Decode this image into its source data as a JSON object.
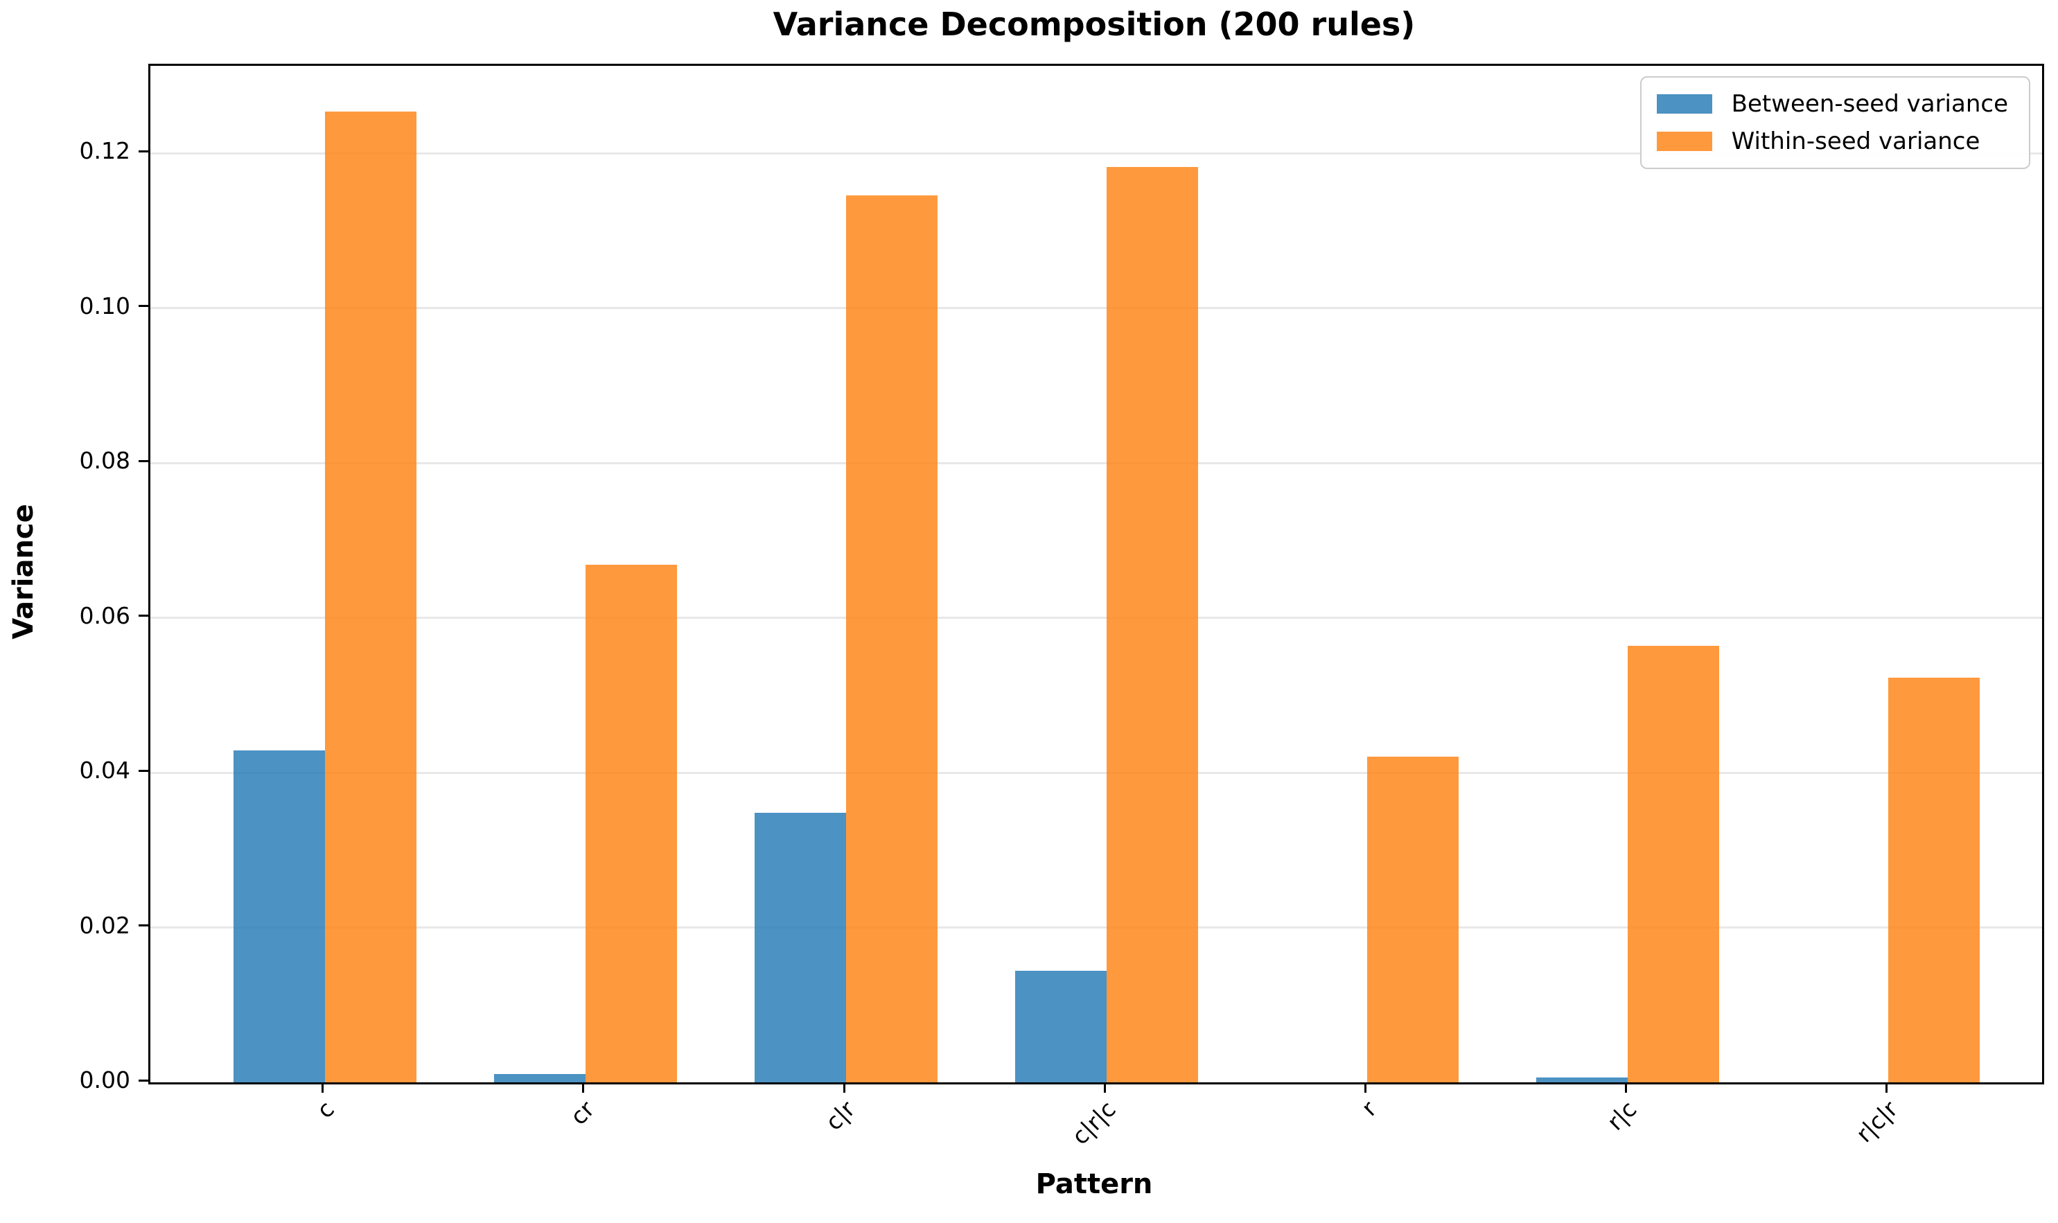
{
  "chart_data": {
    "type": "bar",
    "title": "Variance Decomposition (200 rules)",
    "xlabel": "Pattern",
    "ylabel": "Variance",
    "categories": [
      "c",
      "cr",
      "c|r",
      "c|r|c",
      "r",
      "r|c",
      "r|c|r"
    ],
    "series": [
      {
        "name": "Between-seed variance",
        "color": "#1f77b4",
        "alpha": 0.8,
        "values": [
          0.0429,
          0.0011,
          0.0348,
          0.0144,
          0.0,
          0.0006,
          0.0
        ]
      },
      {
        "name": "Within-seed variance",
        "color": "#ff7f0e",
        "alpha": 0.8,
        "values": [
          0.1254,
          0.0669,
          0.1146,
          0.1182,
          0.0421,
          0.0564,
          0.0523
        ]
      }
    ],
    "ylim": [
      0,
      0.1313
    ],
    "yticks": [
      0.0,
      0.02,
      0.04,
      0.06,
      0.08,
      0.1,
      0.12
    ],
    "ytick_labels": [
      "0.00",
      "0.02",
      "0.04",
      "0.06",
      "0.08",
      "0.10",
      "0.12"
    ],
    "xtick_rotation_deg": 45,
    "bar_width_units": 0.35,
    "grid": "horizontal",
    "grid_color": "#e8e8e8",
    "spine_color": "#000000",
    "legend_position": "upper right",
    "legend_border_color": "#cccccc"
  },
  "legend": {
    "items": [
      {
        "label": "Between-seed variance",
        "color": "#1f77b4"
      },
      {
        "label": "Within-seed variance",
        "color": "#ff7f0e"
      }
    ]
  }
}
